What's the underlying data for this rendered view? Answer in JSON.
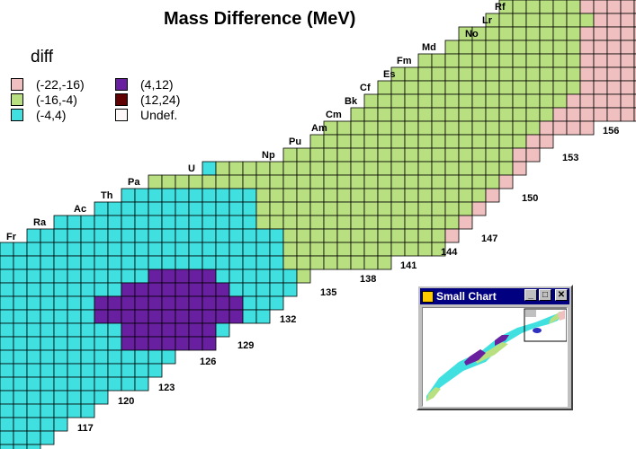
{
  "chart_data": {
    "type": "heatmap",
    "title": "Mass Difference (MeV)",
    "legend": {
      "title": "diff",
      "placement": "top-left",
      "items": [
        {
          "label": "(-22,-16)",
          "color": "#f0c0c0"
        },
        {
          "label": "(-16,-4)",
          "color": "#b8e080"
        },
        {
          "label": "(-4,4)",
          "color": "#40e0e0"
        },
        {
          "label": "(4,12)",
          "color": "#6820a0"
        },
        {
          "label": "(12,24)",
          "color": "#600000"
        },
        {
          "label": "Undef.",
          "color": "#fff8f8"
        }
      ]
    },
    "elements": [
      "Fr",
      "Ra",
      "Ac",
      "Th",
      "Pa",
      "U",
      "Np",
      "Pu",
      "Am",
      "Cm",
      "Bk",
      "Cf",
      "Es",
      "Fm",
      "Md",
      "No",
      "Lr",
      "Rf"
    ],
    "neutron_numbers": [
      "117",
      "120",
      "123",
      "126",
      "129",
      "132",
      "135",
      "138",
      "141",
      "144",
      "147",
      "150",
      "153",
      "156"
    ],
    "grid": true
  },
  "small_chart": {
    "title": "Small Chart",
    "minimize_label": "_",
    "maximize_label": "□",
    "close_label": "✕"
  }
}
